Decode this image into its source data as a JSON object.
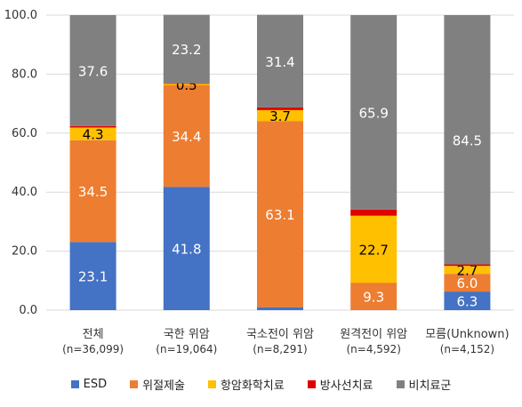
{
  "chart_data": {
    "type": "bar",
    "stacked": true,
    "title": "",
    "xlabel": "",
    "ylabel": "",
    "ylim": [
      0,
      100
    ],
    "yticks": [
      "0.0",
      "20.0",
      "40.0",
      "60.0",
      "80.0",
      "100.0"
    ],
    "grid": true,
    "legend_position": "bottom",
    "categories": [
      {
        "line1": "전체",
        "line2": "(n=36,099)"
      },
      {
        "line1": "국한 위암",
        "line2": "(n=19,064)"
      },
      {
        "line1": "국소전이 위암",
        "line2": "(n=8,291)"
      },
      {
        "line1": "원격전이 위암",
        "line2": "(n=4,592)"
      },
      {
        "line1": "모름(Unknown)",
        "line2": "(n=4,152)"
      }
    ],
    "series": [
      {
        "name": "ESD",
        "color": "#4472C4",
        "values": [
          23.1,
          41.8,
          1.0,
          0.0,
          6.3
        ],
        "labels": [
          "23.1",
          "41.8",
          "",
          "",
          "6.3"
        ],
        "label_color": "#ffffff"
      },
      {
        "name": "위절제술",
        "color": "#ED7D31",
        "values": [
          34.5,
          34.4,
          63.1,
          9.3,
          6.0
        ],
        "labels": [
          "34.5",
          "34.4",
          "63.1",
          "9.3",
          "6.0"
        ],
        "label_color": "#ffffff"
      },
      {
        "name": "항암화학치료",
        "color": "#FFC000",
        "values": [
          4.3,
          0.5,
          3.7,
          22.7,
          2.7
        ],
        "labels": [
          "4.3",
          "0.5",
          "3.7",
          "22.7",
          "2.7"
        ],
        "label_color": "#000000"
      },
      {
        "name": "방사선치료",
        "color": "#E00000",
        "values": [
          0.5,
          0.2,
          0.9,
          2.1,
          0.5
        ],
        "labels": [
          "",
          "",
          "",
          "",
          ""
        ],
        "label_color": "#ffffff"
      },
      {
        "name": "비치료군",
        "color": "#808080",
        "values": [
          37.6,
          23.2,
          31.4,
          65.9,
          84.5
        ],
        "labels": [
          "37.6",
          "23.2",
          "31.4",
          "65.9",
          "84.5"
        ],
        "label_color": "#ffffff"
      }
    ]
  }
}
